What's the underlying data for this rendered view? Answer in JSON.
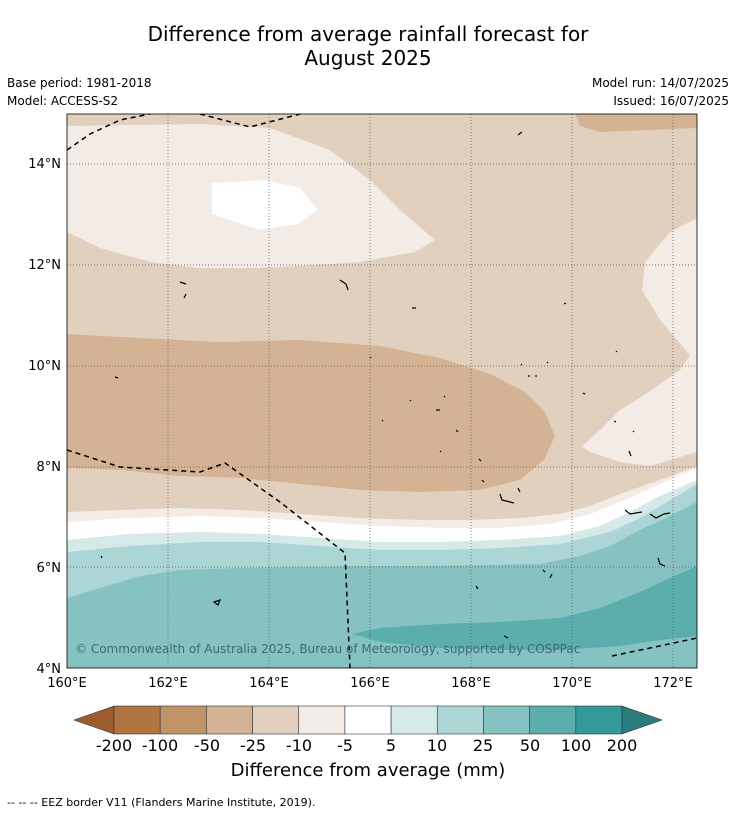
{
  "title_line1": "Difference from average rainfall forecast for",
  "title_line2": "August 2025",
  "base_period": "Base period: 1981-2018",
  "model": "Model: ACCESS-S2",
  "model_run": "Model run: 14/07/2025",
  "issued": "Issued: 16/07/2025",
  "copyright": "© Commonwealth of Australia 2025, Bureau of Meteorology, supported by COSPPac",
  "lat_labels": [
    "14°N",
    "12°N",
    "10°N",
    "8°N",
    "6°N",
    "4°N"
  ],
  "lon_labels": [
    "160°E",
    "162°E",
    "164°E",
    "166°E",
    "168°E",
    "170°E",
    "172°E"
  ],
  "colorbar": {
    "title": "Difference from average (mm)",
    "tick_labels": [
      "-200",
      "-100",
      "-50",
      "-25",
      "-10",
      "-5",
      "5",
      "10",
      "25",
      "50",
      "100",
      "200"
    ],
    "colors": [
      "#9c5c2d",
      "#b07540",
      "#c19468",
      "#d3b393",
      "#e2d0bf",
      "#f3ebe5",
      "#ffffff",
      "#d5e9e8",
      "#acd6d5",
      "#85c2c1",
      "#5baeac",
      "#339a99",
      "#2a7c7b"
    ]
  },
  "footer": "--  --  -- EEZ border V11 (Flanders Marine Institute, 2019)."
}
